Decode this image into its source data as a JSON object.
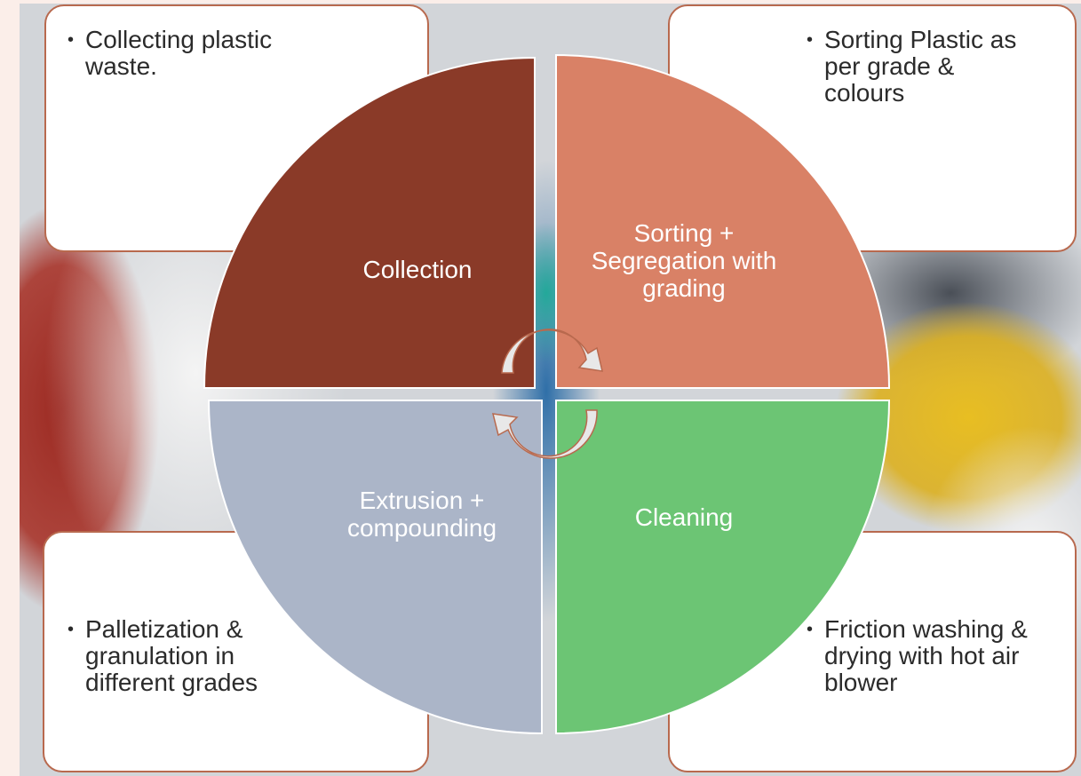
{
  "quadrants": [
    {
      "label": "Collection",
      "note": "Collecting plastic waste."
    },
    {
      "label": "Sorting + Segregation with grading",
      "note": "Sorting Plastic as per grade & colours"
    },
    {
      "label": "Cleaning",
      "note": "Friction washing & drying with hot air blower"
    },
    {
      "label": "Extrusion + compounding",
      "note": "Palletization & granulation in different grades"
    }
  ]
}
